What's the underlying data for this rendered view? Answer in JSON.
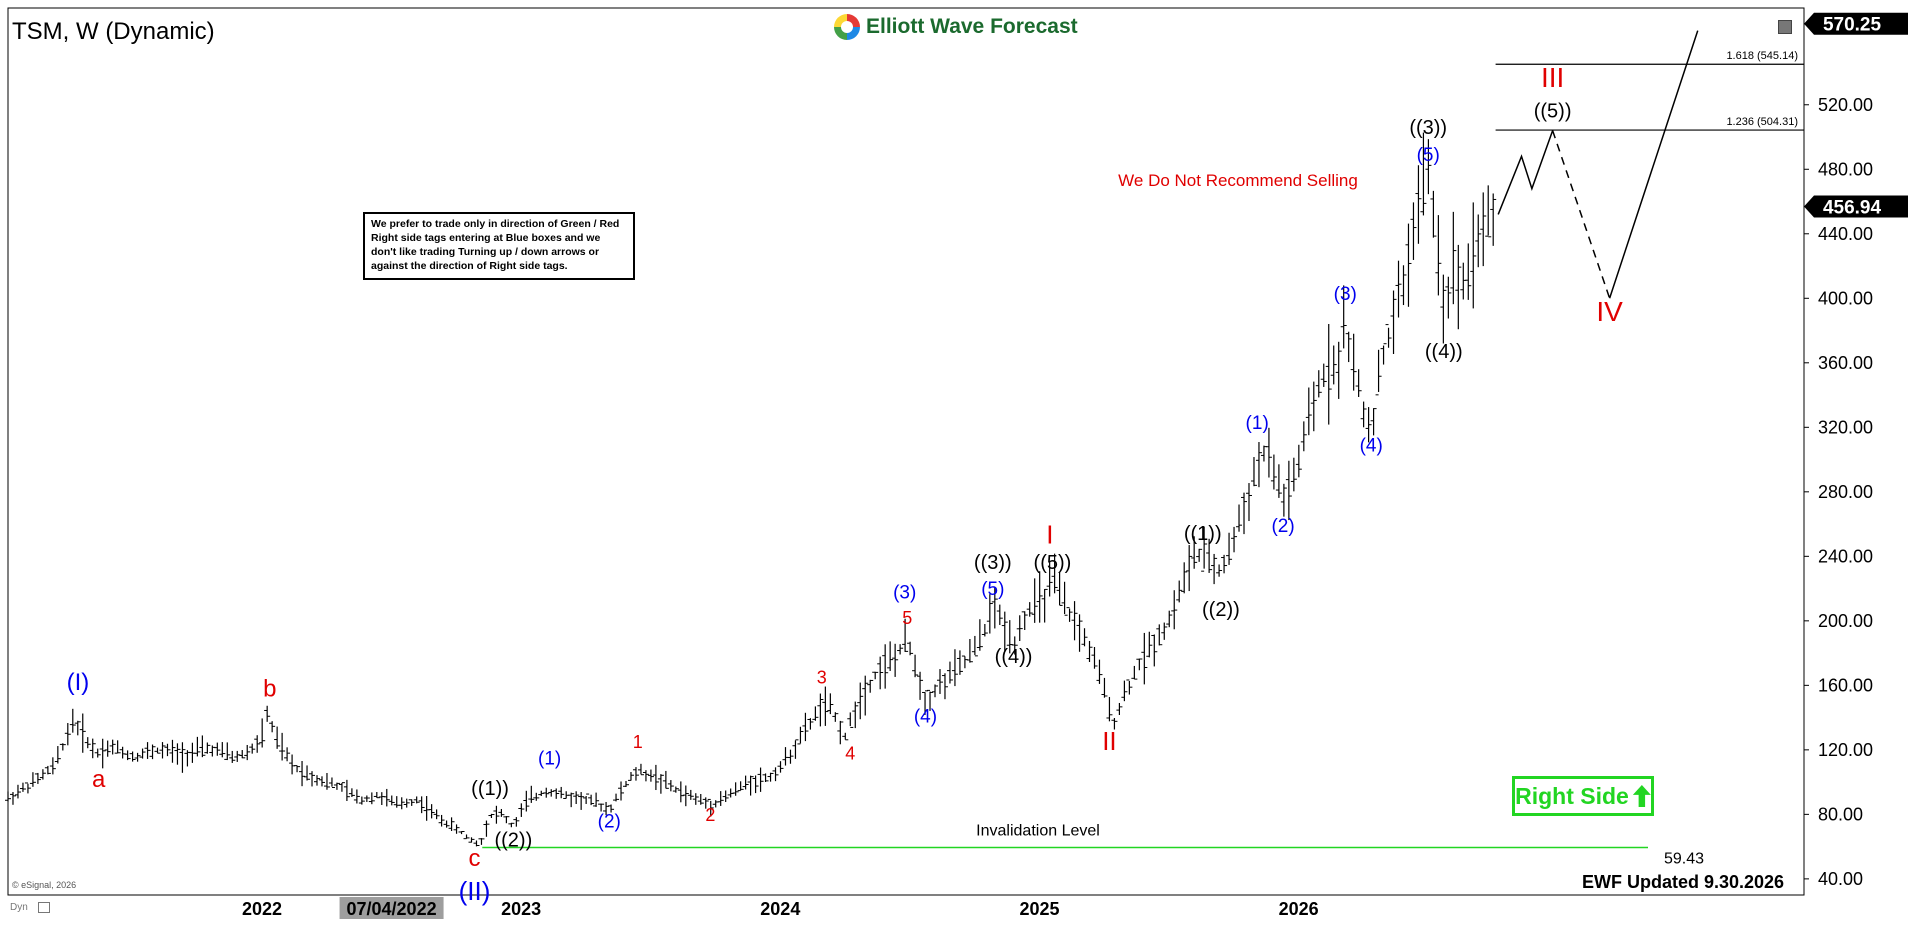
{
  "symbol": "TSM, W (Dynamic)",
  "watermark": "Elliott Wave Forecast",
  "note": "We prefer to trade only in direction of Green / Red Right side tags entering at Blue boxes and we don't like trading Turning up / down arrows or against the direction of Right side tags.",
  "recommendation": "We Do Not Recommend Selling",
  "invalidation_label": "Invalidation Level",
  "invalidation_value": "59.43",
  "right_side_label": "Right Side",
  "ewf_updated": "EWF Updated 9.30.2026",
  "esignal": "© eSignal, 2026",
  "dyn": "Dyn",
  "colors": {
    "green": "#22d522",
    "red": "#e00000",
    "blue": "#0000ee",
    "black": "#000000",
    "price_bg": "#000000"
  },
  "chart_data": {
    "type": "ohlc",
    "interval": "weekly",
    "ylim": [
      30,
      580
    ],
    "yticks": [
      40,
      80,
      120,
      160,
      200,
      240,
      280,
      320,
      360,
      400,
      440,
      480,
      520
    ],
    "ytick_labels": [
      "40.00",
      "80.00",
      "120.00",
      "160.00",
      "200.00",
      "240.00",
      "280.00",
      "320.00",
      "360.00",
      "400.00",
      "440.00",
      "480.00",
      "520.00"
    ],
    "x_range": [
      2021.02,
      2027.95
    ],
    "xticks": [
      {
        "x": 2022.0,
        "label": "2022"
      },
      {
        "x": 2022.5,
        "label": "07/04/2022",
        "highlight": true
      },
      {
        "x": 2023.0,
        "label": "2023"
      },
      {
        "x": 2024.0,
        "label": "2024"
      },
      {
        "x": 2025.0,
        "label": "2025"
      },
      {
        "x": 2026.0,
        "label": "2026"
      }
    ],
    "price_path": [
      [
        2021.02,
        90
      ],
      [
        2021.12,
        100
      ],
      [
        2021.2,
        110
      ],
      [
        2021.27,
        138
      ],
      [
        2021.3,
        132
      ],
      [
        2021.36,
        118
      ],
      [
        2021.42,
        122
      ],
      [
        2021.5,
        116
      ],
      [
        2021.6,
        120
      ],
      [
        2021.7,
        117
      ],
      [
        2021.8,
        121
      ],
      [
        2021.9,
        115
      ],
      [
        2021.96,
        120
      ],
      [
        2022.0,
        128
      ],
      [
        2022.02,
        142
      ],
      [
        2022.06,
        125
      ],
      [
        2022.12,
        110
      ],
      [
        2022.2,
        103
      ],
      [
        2022.3,
        97
      ],
      [
        2022.38,
        89
      ],
      [
        2022.45,
        92
      ],
      [
        2022.52,
        86
      ],
      [
        2022.6,
        89
      ],
      [
        2022.68,
        78
      ],
      [
        2022.74,
        72
      ],
      [
        2022.8,
        65
      ],
      [
        2022.84,
        61
      ],
      [
        2022.88,
        79
      ],
      [
        2022.92,
        81
      ],
      [
        2022.97,
        72
      ],
      [
        2023.02,
        88
      ],
      [
        2023.1,
        95
      ],
      [
        2023.18,
        91
      ],
      [
        2023.26,
        89
      ],
      [
        2023.34,
        83
      ],
      [
        2023.4,
        98
      ],
      [
        2023.45,
        107
      ],
      [
        2023.52,
        103
      ],
      [
        2023.6,
        95
      ],
      [
        2023.67,
        90
      ],
      [
        2023.73,
        86
      ],
      [
        2023.8,
        92
      ],
      [
        2023.88,
        100
      ],
      [
        2023.96,
        103
      ],
      [
        2024.02,
        113
      ],
      [
        2024.08,
        128
      ],
      [
        2024.13,
        140
      ],
      [
        2024.16,
        148
      ],
      [
        2024.2,
        144
      ],
      [
        2024.25,
        128
      ],
      [
        2024.3,
        150
      ],
      [
        2024.38,
        170
      ],
      [
        2024.45,
        178
      ],
      [
        2024.49,
        188
      ],
      [
        2024.53,
        168
      ],
      [
        2024.56,
        150
      ],
      [
        2024.6,
        158
      ],
      [
        2024.67,
        168
      ],
      [
        2024.73,
        178
      ],
      [
        2024.78,
        190
      ],
      [
        2024.82,
        210
      ],
      [
        2024.86,
        198
      ],
      [
        2024.9,
        186
      ],
      [
        2024.95,
        205
      ],
      [
        2025.02,
        215
      ],
      [
        2025.05,
        226
      ],
      [
        2025.1,
        208
      ],
      [
        2025.15,
        196
      ],
      [
        2025.2,
        180
      ],
      [
        2025.24,
        162
      ],
      [
        2025.27,
        145
      ],
      [
        2025.29,
        138
      ],
      [
        2025.33,
        155
      ],
      [
        2025.38,
        172
      ],
      [
        2025.44,
        186
      ],
      [
        2025.5,
        200
      ],
      [
        2025.55,
        222
      ],
      [
        2025.6,
        242
      ],
      [
        2025.65,
        238
      ],
      [
        2025.7,
        230
      ],
      [
        2025.76,
        255
      ],
      [
        2025.82,
        285
      ],
      [
        2025.86,
        305
      ],
      [
        2025.9,
        295
      ],
      [
        2025.94,
        275
      ],
      [
        2025.99,
        290
      ],
      [
        2026.05,
        330
      ],
      [
        2026.1,
        355
      ],
      [
        2026.15,
        360
      ],
      [
        2026.18,
        385
      ],
      [
        2026.22,
        350
      ],
      [
        2026.25,
        330
      ],
      [
        2026.28,
        318
      ],
      [
        2026.32,
        360
      ],
      [
        2026.38,
        395
      ],
      [
        2026.42,
        420
      ],
      [
        2026.46,
        460
      ],
      [
        2026.5,
        478
      ],
      [
        2026.53,
        440
      ],
      [
        2026.56,
        395
      ],
      [
        2026.6,
        420
      ],
      [
        2026.64,
        410
      ],
      [
        2026.68,
        435
      ],
      [
        2026.72,
        445
      ],
      [
        2026.76,
        457
      ]
    ],
    "projection": {
      "solid1": [
        [
          2026.77,
          452
        ],
        [
          2026.86,
          488
        ],
        [
          2026.9,
          468
        ],
        [
          2026.98,
          504
        ]
      ],
      "dashed": [
        [
          2026.98,
          504
        ],
        [
          2027.2,
          400
        ]
      ],
      "solid2": [
        [
          2027.2,
          400
        ],
        [
          2027.54,
          566
        ]
      ]
    },
    "fib_levels": [
      {
        "label": "1.618 (545.14)",
        "value": 545.14,
        "x_start": 2026.76
      },
      {
        "label": "1.236 (504.31)",
        "value": 504.31,
        "x_start": 2026.76
      }
    ],
    "invalidation": {
      "value": 59.43,
      "x_start": 2022.85
    },
    "price_labels": [
      {
        "text": "570.25",
        "value": 570.25
      },
      {
        "text": "456.94",
        "value": 456.94
      }
    ],
    "wave_labels": [
      {
        "text": "(I)",
        "x": 2021.29,
        "y": 157,
        "color": "blue",
        "size": 24
      },
      {
        "text": "a",
        "x": 2021.37,
        "y": 97,
        "color": "red",
        "size": 24
      },
      {
        "text": "b",
        "x": 2022.03,
        "y": 153,
        "color": "red",
        "size": 24
      },
      {
        "text": "c",
        "x": 2022.82,
        "y": 48,
        "color": "red",
        "size": 24
      },
      {
        "text": "(II)",
        "x": 2022.82,
        "y": 27,
        "color": "blue",
        "size": 26
      },
      {
        "text": "((1))",
        "x": 2022.88,
        "y": 92,
        "color": "black",
        "size": 20
      },
      {
        "text": "((2))",
        "x": 2022.97,
        "y": 60,
        "color": "black",
        "size": 20
      },
      {
        "text": "(1)",
        "x": 2023.11,
        "y": 111,
        "color": "blue",
        "size": 19
      },
      {
        "text": "(2)",
        "x": 2023.34,
        "y": 72,
        "color": "blue",
        "size": 19
      },
      {
        "text": "1",
        "x": 2023.45,
        "y": 121,
        "color": "red",
        "size": 18
      },
      {
        "text": "2",
        "x": 2023.73,
        "y": 76,
        "color": "red",
        "size": 18
      },
      {
        "text": "3",
        "x": 2024.16,
        "y": 161,
        "color": "red",
        "size": 18
      },
      {
        "text": "4",
        "x": 2024.27,
        "y": 114,
        "color": "red",
        "size": 18
      },
      {
        "text": "(3)",
        "x": 2024.48,
        "y": 214,
        "color": "blue",
        "size": 19
      },
      {
        "text": "5",
        "x": 2024.49,
        "y": 198,
        "color": "red",
        "size": 18
      },
      {
        "text": "(4)",
        "x": 2024.56,
        "y": 137,
        "color": "blue",
        "size": 19
      },
      {
        "text": "((3))",
        "x": 2024.82,
        "y": 232,
        "color": "black",
        "size": 20
      },
      {
        "text": "(5)",
        "x": 2024.82,
        "y": 216,
        "color": "blue",
        "size": 19
      },
      {
        "text": "((4))",
        "x": 2024.9,
        "y": 174,
        "color": "black",
        "size": 20
      },
      {
        "text": "I",
        "x": 2025.04,
        "y": 248,
        "color": "red",
        "size": 26
      },
      {
        "text": "((5))",
        "x": 2025.05,
        "y": 232,
        "color": "black",
        "size": 20
      },
      {
        "text": "II",
        "x": 2025.27,
        "y": 120,
        "color": "red",
        "size": 26
      },
      {
        "text": "((1))",
        "x": 2025.63,
        "y": 250,
        "color": "black",
        "size": 20
      },
      {
        "text": "((2))",
        "x": 2025.7,
        "y": 203,
        "color": "black",
        "size": 20
      },
      {
        "text": "(1)",
        "x": 2025.84,
        "y": 319,
        "color": "blue",
        "size": 19
      },
      {
        "text": "(2)",
        "x": 2025.94,
        "y": 255,
        "color": "blue",
        "size": 19
      },
      {
        "text": "(3)",
        "x": 2026.18,
        "y": 399,
        "color": "blue",
        "size": 19
      },
      {
        "text": "(4)",
        "x": 2026.28,
        "y": 305,
        "color": "blue",
        "size": 19
      },
      {
        "text": "((3))",
        "x": 2026.5,
        "y": 502,
        "color": "black",
        "size": 20
      },
      {
        "text": "(5)",
        "x": 2026.5,
        "y": 485,
        "color": "blue",
        "size": 19
      },
      {
        "text": "((4))",
        "x": 2026.56,
        "y": 363,
        "color": "black",
        "size": 20
      },
      {
        "text": "III",
        "x": 2026.98,
        "y": 531,
        "color": "red",
        "size": 28
      },
      {
        "text": "((5))",
        "x": 2026.98,
        "y": 512,
        "color": "black",
        "size": 20
      },
      {
        "text": "IV",
        "x": 2027.2,
        "y": 386,
        "color": "red",
        "size": 28
      }
    ]
  }
}
